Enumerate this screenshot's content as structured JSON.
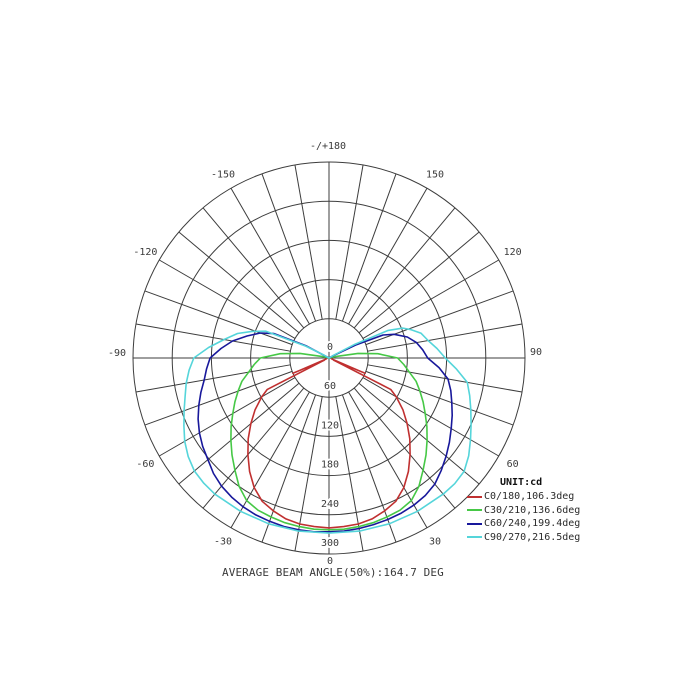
{
  "chart_data": {
    "type": "polar_intensity",
    "unit_label": "UNIT:cd",
    "footer": "AVERAGE BEAM ANGLE(50%):164.7 DEG",
    "orientation": {
      "zero_deg": "bottom",
      "positive_side": "right",
      "max_deg_label": "-/+180"
    },
    "radial_ticks_cd": [
      0,
      60,
      120,
      180,
      240,
      300
    ],
    "rmax_cd": 300,
    "grid": {
      "spoke_step_deg": 10,
      "labeled_step_deg": 30,
      "line_color": "#3d3d3d",
      "text_color": "#3a3a3a",
      "background": "#ffffff"
    },
    "angle_ticks": [
      {
        "a": 180,
        "t": "-/+180"
      },
      {
        "a": 150,
        "t": "150"
      },
      {
        "a": 120,
        "t": "120"
      },
      {
        "a": 90,
        "t": "90"
      },
      {
        "a": 60,
        "t": "60"
      },
      {
        "a": 30,
        "t": "30"
      },
      {
        "a": 0,
        "t": "0"
      },
      {
        "a": -30,
        "t": "-30"
      },
      {
        "a": -60,
        "t": "-60"
      },
      {
        "a": -90,
        "t": "-90"
      },
      {
        "a": -120,
        "t": "-120"
      },
      {
        "a": -150,
        "t": "-150"
      }
    ],
    "series": [
      {
        "name": "C0/180,106.3deg",
        "plane": "C0/180",
        "beam_angle_50pct_deg": 106.3,
        "color": "#c03030",
        "points": [
          [
            -180,
            0
          ],
          [
            -120,
            0
          ],
          [
            -100,
            0
          ],
          [
            -95,
            2
          ],
          [
            -90,
            3
          ],
          [
            -85,
            4
          ],
          [
            -75,
            4
          ],
          [
            -70,
            5
          ],
          [
            -67,
            60
          ],
          [
            -65,
            8
          ],
          [
            -63,
            106
          ],
          [
            -60,
            119
          ],
          [
            -55,
            138
          ],
          [
            -50,
            156
          ],
          [
            -45,
            175
          ],
          [
            -40,
            193
          ],
          [
            -35,
            212
          ],
          [
            -30,
            229
          ],
          [
            -25,
            242
          ],
          [
            -20,
            249
          ],
          [
            -15,
            255
          ],
          [
            -10,
            258
          ],
          [
            -5,
            259
          ],
          [
            0,
            260
          ],
          [
            5,
            259
          ],
          [
            10,
            258
          ],
          [
            15,
            255
          ],
          [
            20,
            249
          ],
          [
            25,
            242
          ],
          [
            30,
            229
          ],
          [
            35,
            212
          ],
          [
            40,
            193
          ],
          [
            45,
            175
          ],
          [
            50,
            156
          ],
          [
            55,
            138
          ],
          [
            60,
            119
          ],
          [
            63,
            106
          ],
          [
            65,
            8
          ],
          [
            67,
            60
          ],
          [
            70,
            5
          ],
          [
            75,
            4
          ],
          [
            85,
            4
          ],
          [
            90,
            3
          ],
          [
            95,
            2
          ],
          [
            100,
            0
          ],
          [
            120,
            0
          ],
          [
            180,
            0
          ]
        ]
      },
      {
        "name": "C30/210,136.6deg",
        "plane": "C30/210",
        "beam_angle_50pct_deg": 136.6,
        "color": "#46c846",
        "points": [
          [
            -180,
            0
          ],
          [
            -105,
            0
          ],
          [
            -102,
            10
          ],
          [
            -99,
            45
          ],
          [
            -95,
            75
          ],
          [
            -90,
            105
          ],
          [
            -85,
            115
          ],
          [
            -80,
            125
          ],
          [
            -75,
            138
          ],
          [
            -70,
            148
          ],
          [
            -65,
            159
          ],
          [
            -60,
            170
          ],
          [
            -55,
            183
          ],
          [
            -50,
            196
          ],
          [
            -45,
            210
          ],
          [
            -40,
            224
          ],
          [
            -35,
            240
          ],
          [
            -30,
            252
          ],
          [
            -25,
            257
          ],
          [
            -20,
            259
          ],
          [
            -15,
            261
          ],
          [
            -10,
            262
          ],
          [
            -5,
            263
          ],
          [
            0,
            263
          ],
          [
            5,
            263
          ],
          [
            10,
            262
          ],
          [
            15,
            261
          ],
          [
            20,
            259
          ],
          [
            25,
            257
          ],
          [
            30,
            252
          ],
          [
            35,
            240
          ],
          [
            40,
            224
          ],
          [
            45,
            210
          ],
          [
            50,
            196
          ],
          [
            55,
            183
          ],
          [
            60,
            170
          ],
          [
            65,
            159
          ],
          [
            70,
            148
          ],
          [
            75,
            138
          ],
          [
            80,
            125
          ],
          [
            85,
            115
          ],
          [
            90,
            105
          ],
          [
            95,
            75
          ],
          [
            99,
            45
          ],
          [
            102,
            10
          ],
          [
            105,
            0
          ],
          [
            180,
            0
          ]
        ]
      },
      {
        "name": "C60/240,199.4deg",
        "plane": "C60/240",
        "beam_angle_50pct_deg": 199.4,
        "color": "#18189b",
        "points": [
          [
            -180,
            0
          ],
          [
            -121,
            0
          ],
          [
            -118,
            40
          ],
          [
            -114,
            92
          ],
          [
            -110,
            112
          ],
          [
            -105,
            130
          ],
          [
            -100,
            150
          ],
          [
            -95,
            166
          ],
          [
            -90,
            182
          ],
          [
            -85,
            188
          ],
          [
            -80,
            194
          ],
          [
            -75,
            203
          ],
          [
            -70,
            212
          ],
          [
            -65,
            221
          ],
          [
            -60,
            229
          ],
          [
            -55,
            236
          ],
          [
            -50,
            242
          ],
          [
            -45,
            250
          ],
          [
            -40,
            256
          ],
          [
            -35,
            260
          ],
          [
            -30,
            263
          ],
          [
            -25,
            265
          ],
          [
            -20,
            266
          ],
          [
            -15,
            267
          ],
          [
            -10,
            267
          ],
          [
            -5,
            267
          ],
          [
            0,
            266
          ],
          [
            5,
            266
          ],
          [
            10,
            265
          ],
          [
            15,
            264
          ],
          [
            20,
            263
          ],
          [
            25,
            262
          ],
          [
            30,
            260
          ],
          [
            35,
            257
          ],
          [
            40,
            252
          ],
          [
            45,
            243
          ],
          [
            50,
            234
          ],
          [
            55,
            225
          ],
          [
            60,
            216
          ],
          [
            65,
            208
          ],
          [
            70,
            200
          ],
          [
            75,
            193
          ],
          [
            80,
            185
          ],
          [
            85,
            169
          ],
          [
            90,
            151
          ],
          [
            95,
            144
          ],
          [
            100,
            136
          ],
          [
            105,
            124
          ],
          [
            110,
            106
          ],
          [
            113,
            90
          ],
          [
            116,
            45
          ],
          [
            119,
            8
          ],
          [
            121,
            0
          ],
          [
            180,
            0
          ]
        ]
      },
      {
        "name": "C90/270,216.5deg",
        "plane": "C90/270",
        "beam_angle_50pct_deg": 216.5,
        "color": "#55d5da",
        "points": [
          [
            -180,
            0
          ],
          [
            -123,
            0
          ],
          [
            -120,
            8
          ],
          [
            -117,
            40
          ],
          [
            -113,
            105
          ],
          [
            -109,
            125
          ],
          [
            -105,
            145
          ],
          [
            -100,
            163
          ],
          [
            -95,
            185
          ],
          [
            -90,
            207
          ],
          [
            -85,
            215
          ],
          [
            -80,
            222
          ],
          [
            -75,
            228
          ],
          [
            -70,
            236
          ],
          [
            -65,
            245
          ],
          [
            -60,
            255
          ],
          [
            -55,
            263
          ],
          [
            -50,
            269
          ],
          [
            -45,
            271
          ],
          [
            -40,
            272
          ],
          [
            -30,
            271
          ],
          [
            -20,
            270
          ],
          [
            -10,
            269
          ],
          [
            0,
            268
          ],
          [
            10,
            269
          ],
          [
            20,
            270
          ],
          [
            30,
            271
          ],
          [
            40,
            272
          ],
          [
            45,
            272
          ],
          [
            50,
            270
          ],
          [
            55,
            261
          ],
          [
            60,
            250
          ],
          [
            65,
            240
          ],
          [
            70,
            231
          ],
          [
            75,
            223
          ],
          [
            80,
            215
          ],
          [
            85,
            196
          ],
          [
            90,
            178
          ],
          [
            95,
            166
          ],
          [
            100,
            154
          ],
          [
            105,
            146
          ],
          [
            109,
            133
          ],
          [
            112,
            122
          ],
          [
            115,
            100
          ],
          [
            118,
            45
          ],
          [
            121,
            8
          ],
          [
            123,
            0
          ],
          [
            180,
            0
          ]
        ]
      }
    ]
  }
}
